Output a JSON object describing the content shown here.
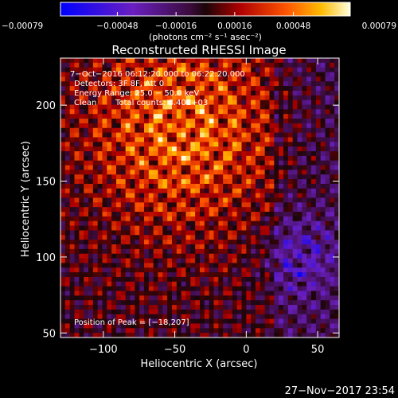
{
  "chart_data": {
    "type": "heatmap",
    "title": "Reconstructed RHESSI Image",
    "xlabel": "Heliocentric X (arcsec)",
    "ylabel": "Heliocentric Y (arcsec)",
    "xlim": [
      -130,
      65
    ],
    "ylim": [
      47,
      231
    ],
    "x_ticks": [
      -100,
      -50,
      0,
      50
    ],
    "y_ticks": [
      50,
      100,
      150,
      200
    ],
    "x_tick_labels": [
      "−100",
      "−50",
      "0",
      "50"
    ],
    "y_tick_labels": [
      "50",
      "100",
      "150",
      "200"
    ],
    "colorbar": {
      "range": [
        -0.00079,
        0.00079
      ],
      "ticks": [
        -0.00079,
        -0.00048,
        -0.00016,
        0.00016,
        0.00048,
        0.00079
      ],
      "tick_labels": [
        "−0.00079",
        "−0.00048",
        "−0.00016",
        "0.00016",
        "0.00048",
        "0.00079"
      ],
      "units": "(photons cm⁻² s⁻¹ asec⁻²)"
    },
    "annotations": {
      "time_range": "7−Oct−2016 06:12:20.000 to 06:22:20.000",
      "detectors": "Detectors: 3F 8F, Att 0",
      "energy": "Energy Range: 25.0 − 50.0 keV",
      "method": "Clean",
      "counts": "Total counts: 8.40E+03",
      "peak": "Position of Peak = [−18,207]"
    },
    "peak_position": [
      -18,
      207
    ],
    "source_center": [
      -45,
      185
    ],
    "noise_center": [
      38,
      100
    ]
  },
  "footer": {
    "date": "27−Nov−2017 23:54"
  }
}
